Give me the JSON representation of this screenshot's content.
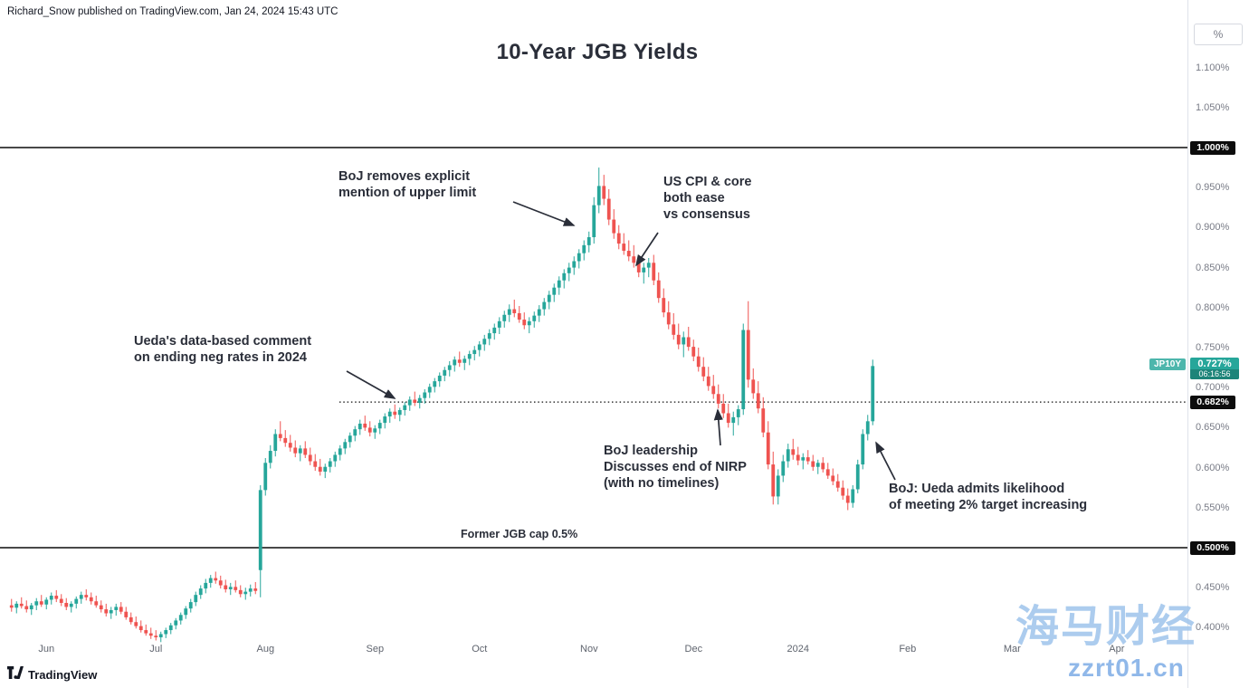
{
  "header": {
    "attribution": "Richard_Snow published on TradingView.com, Jan 24, 2024 15:43 UTC",
    "title": "10-Year JGB Yields"
  },
  "axis": {
    "unit": "%"
  },
  "price_marker": {
    "symbol": "JP10Y",
    "price": "0.727%",
    "countdown": "06:16:56",
    "value": 0.727,
    "color": "#26a69a"
  },
  "footer": {
    "brand": "TradingView"
  },
  "watermark": {
    "cn": "海马财经",
    "url": "zzrt01.cn"
  },
  "chart_data": {
    "type": "candlestick",
    "title": "10-Year JGB Yields",
    "ylabel": "%",
    "ylim": [
      0.38,
      1.15
    ],
    "grid": false,
    "colors": {
      "up": "#26a69a",
      "down": "#ef5350"
    },
    "levels": [
      {
        "value": 1.0,
        "label": "1.000%",
        "style": "solid",
        "x_start": 0
      },
      {
        "value": 0.682,
        "label": "0.682%",
        "style": "dotted",
        "x_start": 375
      },
      {
        "value": 0.5,
        "label": "0.500%",
        "style": "solid",
        "x_start": 0
      }
    ],
    "y_ticks": [
      {
        "v": 1.1,
        "label": "1.100%"
      },
      {
        "v": 1.05,
        "label": "1.050%"
      },
      {
        "v": 1.0,
        "label": "1.000%"
      },
      {
        "v": 0.95,
        "label": "0.950%"
      },
      {
        "v": 0.9,
        "label": "0.900%"
      },
      {
        "v": 0.85,
        "label": "0.850%"
      },
      {
        "v": 0.8,
        "label": "0.800%"
      },
      {
        "v": 0.75,
        "label": "0.750%"
      },
      {
        "v": 0.7,
        "label": "0.700%"
      },
      {
        "v": 0.65,
        "label": "0.650%"
      },
      {
        "v": 0.6,
        "label": "0.600%"
      },
      {
        "v": 0.55,
        "label": "0.550%"
      },
      {
        "v": 0.5,
        "label": "0.500%"
      },
      {
        "v": 0.45,
        "label": "0.450%"
      },
      {
        "v": 0.4,
        "label": "0.400%"
      }
    ],
    "x_ticks": [
      {
        "label": "Jun",
        "i": 7
      },
      {
        "label": "Jul",
        "i": 29
      },
      {
        "label": "Aug",
        "i": 51
      },
      {
        "label": "Sep",
        "i": 73
      },
      {
        "label": "Oct",
        "i": 94
      },
      {
        "label": "Nov",
        "i": 116
      },
      {
        "label": "Dec",
        "i": 137
      },
      {
        "label": "2024",
        "i": 158
      },
      {
        "label": "Feb",
        "i": 180
      },
      {
        "label": "Mar",
        "i": 201
      },
      {
        "label": "Apr",
        "i": 222
      }
    ],
    "annotations": [
      {
        "text": "BoJ removes explicit\nmention of upper limit",
        "arrow": {
          "from": [
            567,
            223
          ],
          "to": [
            634,
            249
          ]
        }
      },
      {
        "text": "US CPI & core\nboth ease\nvs consensus",
        "arrow": {
          "from": [
            727,
            257
          ],
          "to": [
            703,
            293
          ]
        }
      },
      {
        "text": "Ueda's data-based comment\non ending neg rates in 2024",
        "arrow": {
          "from": [
            383,
            410
          ],
          "to": [
            436,
            440
          ]
        }
      },
      {
        "text": "BoJ leadership\nDiscusses end of NIRP\n(with no timelines)",
        "arrow": {
          "from": [
            796,
            492
          ],
          "to": [
            793,
            453
          ]
        }
      },
      {
        "text": "BoJ: Ueda admits likelihood\nof meeting 2% target increasing",
        "arrow": {
          "from": [
            989,
            530
          ],
          "to": [
            968,
            489
          ]
        }
      },
      {
        "text": "Former JGB cap 0.5%"
      }
    ],
    "candles": [
      [
        0.428,
        0.436,
        0.42,
        0.425
      ],
      [
        0.425,
        0.433,
        0.418,
        0.43
      ],
      [
        0.43,
        0.438,
        0.424,
        0.427
      ],
      [
        0.427,
        0.434,
        0.419,
        0.423
      ],
      [
        0.423,
        0.431,
        0.416,
        0.428
      ],
      [
        0.428,
        0.437,
        0.422,
        0.433
      ],
      [
        0.433,
        0.441,
        0.426,
        0.429
      ],
      [
        0.429,
        0.438,
        0.423,
        0.435
      ],
      [
        0.435,
        0.444,
        0.429,
        0.44
      ],
      [
        0.44,
        0.447,
        0.432,
        0.436
      ],
      [
        0.436,
        0.442,
        0.427,
        0.431
      ],
      [
        0.431,
        0.437,
        0.422,
        0.426
      ],
      [
        0.426,
        0.433,
        0.419,
        0.43
      ],
      [
        0.43,
        0.439,
        0.424,
        0.436
      ],
      [
        0.436,
        0.445,
        0.43,
        0.441
      ],
      [
        0.441,
        0.448,
        0.434,
        0.438
      ],
      [
        0.438,
        0.444,
        0.429,
        0.433
      ],
      [
        0.433,
        0.44,
        0.425,
        0.428
      ],
      [
        0.428,
        0.434,
        0.419,
        0.423
      ],
      [
        0.423,
        0.43,
        0.414,
        0.418
      ],
      [
        0.418,
        0.426,
        0.411,
        0.422
      ],
      [
        0.422,
        0.43,
        0.415,
        0.426
      ],
      [
        0.426,
        0.432,
        0.417,
        0.42
      ],
      [
        0.42,
        0.426,
        0.41,
        0.413
      ],
      [
        0.413,
        0.419,
        0.404,
        0.407
      ],
      [
        0.407,
        0.414,
        0.399,
        0.402
      ],
      [
        0.402,
        0.409,
        0.394,
        0.397
      ],
      [
        0.397,
        0.404,
        0.39,
        0.393
      ],
      [
        0.393,
        0.4,
        0.386,
        0.39
      ],
      [
        0.39,
        0.397,
        0.384,
        0.388
      ],
      [
        0.388,
        0.395,
        0.382,
        0.392
      ],
      [
        0.392,
        0.4,
        0.387,
        0.397
      ],
      [
        0.397,
        0.406,
        0.392,
        0.403
      ],
      [
        0.403,
        0.412,
        0.398,
        0.409
      ],
      [
        0.409,
        0.419,
        0.404,
        0.416
      ],
      [
        0.416,
        0.427,
        0.411,
        0.424
      ],
      [
        0.424,
        0.436,
        0.419,
        0.432
      ],
      [
        0.432,
        0.445,
        0.427,
        0.441
      ],
      [
        0.441,
        0.453,
        0.436,
        0.449
      ],
      [
        0.449,
        0.461,
        0.443,
        0.456
      ],
      [
        0.456,
        0.466,
        0.45,
        0.462
      ],
      [
        0.462,
        0.47,
        0.455,
        0.459
      ],
      [
        0.459,
        0.465,
        0.449,
        0.453
      ],
      [
        0.453,
        0.46,
        0.444,
        0.448
      ],
      [
        0.448,
        0.456,
        0.441,
        0.451
      ],
      [
        0.451,
        0.459,
        0.444,
        0.447
      ],
      [
        0.447,
        0.453,
        0.438,
        0.442
      ],
      [
        0.442,
        0.45,
        0.435,
        0.445
      ],
      [
        0.445,
        0.454,
        0.439,
        0.449
      ],
      [
        0.449,
        0.457,
        0.442,
        0.446
      ],
      [
        0.472,
        0.578,
        0.438,
        0.572
      ],
      [
        0.572,
        0.612,
        0.565,
        0.606
      ],
      [
        0.606,
        0.628,
        0.599,
        0.621
      ],
      [
        0.621,
        0.648,
        0.614,
        0.642
      ],
      [
        0.642,
        0.658,
        0.633,
        0.637
      ],
      [
        0.637,
        0.647,
        0.626,
        0.631
      ],
      [
        0.631,
        0.641,
        0.62,
        0.625
      ],
      [
        0.625,
        0.634,
        0.613,
        0.618
      ],
      [
        0.618,
        0.628,
        0.608,
        0.624
      ],
      [
        0.624,
        0.633,
        0.612,
        0.616
      ],
      [
        0.616,
        0.625,
        0.603,
        0.608
      ],
      [
        0.608,
        0.617,
        0.596,
        0.601
      ],
      [
        0.601,
        0.611,
        0.59,
        0.595
      ],
      [
        0.595,
        0.605,
        0.587,
        0.601
      ],
      [
        0.601,
        0.612,
        0.594,
        0.608
      ],
      [
        0.608,
        0.62,
        0.601,
        0.616
      ],
      [
        0.616,
        0.628,
        0.609,
        0.624
      ],
      [
        0.624,
        0.636,
        0.617,
        0.632
      ],
      [
        0.632,
        0.644,
        0.625,
        0.64
      ],
      [
        0.64,
        0.652,
        0.633,
        0.648
      ],
      [
        0.648,
        0.66,
        0.641,
        0.655
      ],
      [
        0.655,
        0.665,
        0.646,
        0.65
      ],
      [
        0.65,
        0.658,
        0.639,
        0.644
      ],
      [
        0.644,
        0.653,
        0.636,
        0.649
      ],
      [
        0.649,
        0.66,
        0.642,
        0.656
      ],
      [
        0.656,
        0.668,
        0.649,
        0.664
      ],
      [
        0.664,
        0.674,
        0.656,
        0.67
      ],
      [
        0.67,
        0.679,
        0.661,
        0.666
      ],
      [
        0.666,
        0.675,
        0.658,
        0.672
      ],
      [
        0.672,
        0.682,
        0.665,
        0.678
      ],
      [
        0.678,
        0.689,
        0.671,
        0.685
      ],
      [
        0.685,
        0.695,
        0.677,
        0.681
      ],
      [
        0.681,
        0.691,
        0.674,
        0.687
      ],
      [
        0.687,
        0.698,
        0.68,
        0.694
      ],
      [
        0.694,
        0.705,
        0.687,
        0.701
      ],
      [
        0.701,
        0.712,
        0.694,
        0.708
      ],
      [
        0.708,
        0.719,
        0.701,
        0.715
      ],
      [
        0.715,
        0.726,
        0.708,
        0.722
      ],
      [
        0.722,
        0.733,
        0.714,
        0.728
      ],
      [
        0.728,
        0.739,
        0.72,
        0.735
      ],
      [
        0.735,
        0.745,
        0.726,
        0.731
      ],
      [
        0.731,
        0.74,
        0.722,
        0.736
      ],
      [
        0.736,
        0.746,
        0.728,
        0.742
      ],
      [
        0.742,
        0.752,
        0.734,
        0.747
      ],
      [
        0.747,
        0.758,
        0.739,
        0.754
      ],
      [
        0.754,
        0.766,
        0.746,
        0.761
      ],
      [
        0.761,
        0.773,
        0.753,
        0.768
      ],
      [
        0.768,
        0.78,
        0.76,
        0.775
      ],
      [
        0.775,
        0.788,
        0.767,
        0.783
      ],
      [
        0.783,
        0.796,
        0.775,
        0.791
      ],
      [
        0.791,
        0.804,
        0.782,
        0.798
      ],
      [
        0.798,
        0.81,
        0.788,
        0.793
      ],
      [
        0.793,
        0.802,
        0.781,
        0.785
      ],
      [
        0.785,
        0.794,
        0.773,
        0.778
      ],
      [
        0.778,
        0.788,
        0.768,
        0.783
      ],
      [
        0.783,
        0.795,
        0.775,
        0.79
      ],
      [
        0.79,
        0.803,
        0.782,
        0.798
      ],
      [
        0.798,
        0.812,
        0.79,
        0.807
      ],
      [
        0.807,
        0.821,
        0.798,
        0.816
      ],
      [
        0.816,
        0.83,
        0.807,
        0.825
      ],
      [
        0.825,
        0.839,
        0.816,
        0.834
      ],
      [
        0.834,
        0.848,
        0.824,
        0.843
      ],
      [
        0.843,
        0.856,
        0.833,
        0.85
      ],
      [
        0.85,
        0.864,
        0.841,
        0.858
      ],
      [
        0.858,
        0.873,
        0.849,
        0.868
      ],
      [
        0.868,
        0.884,
        0.859,
        0.878
      ],
      [
        0.878,
        0.895,
        0.869,
        0.888
      ],
      [
        0.888,
        0.938,
        0.88,
        0.928
      ],
      [
        0.928,
        0.975,
        0.918,
        0.952
      ],
      [
        0.952,
        0.966,
        0.928,
        0.936
      ],
      [
        0.936,
        0.948,
        0.903,
        0.91
      ],
      [
        0.91,
        0.923,
        0.886,
        0.893
      ],
      [
        0.893,
        0.903,
        0.873,
        0.88
      ],
      [
        0.88,
        0.893,
        0.866,
        0.871
      ],
      [
        0.871,
        0.884,
        0.858,
        0.864
      ],
      [
        0.864,
        0.878,
        0.85,
        0.856
      ],
      [
        0.856,
        0.866,
        0.838,
        0.844
      ],
      [
        0.844,
        0.856,
        0.83,
        0.85
      ],
      [
        0.85,
        0.862,
        0.838,
        0.856
      ],
      [
        0.856,
        0.866,
        0.828,
        0.834
      ],
      [
        0.834,
        0.844,
        0.806,
        0.812
      ],
      [
        0.812,
        0.824,
        0.788,
        0.794
      ],
      [
        0.794,
        0.808,
        0.773,
        0.779
      ],
      [
        0.779,
        0.793,
        0.76,
        0.766
      ],
      [
        0.766,
        0.78,
        0.748,
        0.754
      ],
      [
        0.754,
        0.77,
        0.738,
        0.763
      ],
      [
        0.763,
        0.776,
        0.746,
        0.751
      ],
      [
        0.751,
        0.76,
        0.733,
        0.739
      ],
      [
        0.739,
        0.75,
        0.72,
        0.726
      ],
      [
        0.726,
        0.738,
        0.708,
        0.714
      ],
      [
        0.714,
        0.726,
        0.696,
        0.702
      ],
      [
        0.702,
        0.716,
        0.686,
        0.692
      ],
      [
        0.692,
        0.704,
        0.674,
        0.68
      ],
      [
        0.68,
        0.692,
        0.662,
        0.668
      ],
      [
        0.668,
        0.68,
        0.65,
        0.656
      ],
      [
        0.656,
        0.67,
        0.64,
        0.663
      ],
      [
        0.663,
        0.678,
        0.653,
        0.673
      ],
      [
        0.673,
        0.78,
        0.666,
        0.772
      ],
      [
        0.772,
        0.808,
        0.7,
        0.71
      ],
      [
        0.71,
        0.724,
        0.686,
        0.693
      ],
      [
        0.693,
        0.708,
        0.668,
        0.674
      ],
      [
        0.674,
        0.688,
        0.638,
        0.644
      ],
      [
        0.644,
        0.658,
        0.598,
        0.604
      ],
      [
        0.604,
        0.62,
        0.554,
        0.564
      ],
      [
        0.564,
        0.598,
        0.554,
        0.59
      ],
      [
        0.59,
        0.616,
        0.582,
        0.608
      ],
      [
        0.608,
        0.63,
        0.6,
        0.623
      ],
      [
        0.623,
        0.636,
        0.61,
        0.616
      ],
      [
        0.616,
        0.626,
        0.603,
        0.609
      ],
      [
        0.609,
        0.618,
        0.598,
        0.613
      ],
      [
        0.613,
        0.622,
        0.604,
        0.608
      ],
      [
        0.608,
        0.616,
        0.596,
        0.601
      ],
      [
        0.601,
        0.61,
        0.592,
        0.606
      ],
      [
        0.606,
        0.613,
        0.594,
        0.598
      ],
      [
        0.598,
        0.606,
        0.586,
        0.59
      ],
      [
        0.59,
        0.599,
        0.578,
        0.583
      ],
      [
        0.583,
        0.592,
        0.57,
        0.575
      ],
      [
        0.575,
        0.584,
        0.56,
        0.565
      ],
      [
        0.565,
        0.574,
        0.547,
        0.556
      ],
      [
        0.556,
        0.578,
        0.55,
        0.573
      ],
      [
        0.573,
        0.61,
        0.568,
        0.604
      ],
      [
        0.604,
        0.648,
        0.598,
        0.642
      ],
      [
        0.642,
        0.666,
        0.634,
        0.658
      ],
      [
        0.658,
        0.735,
        0.653,
        0.727
      ]
    ]
  }
}
